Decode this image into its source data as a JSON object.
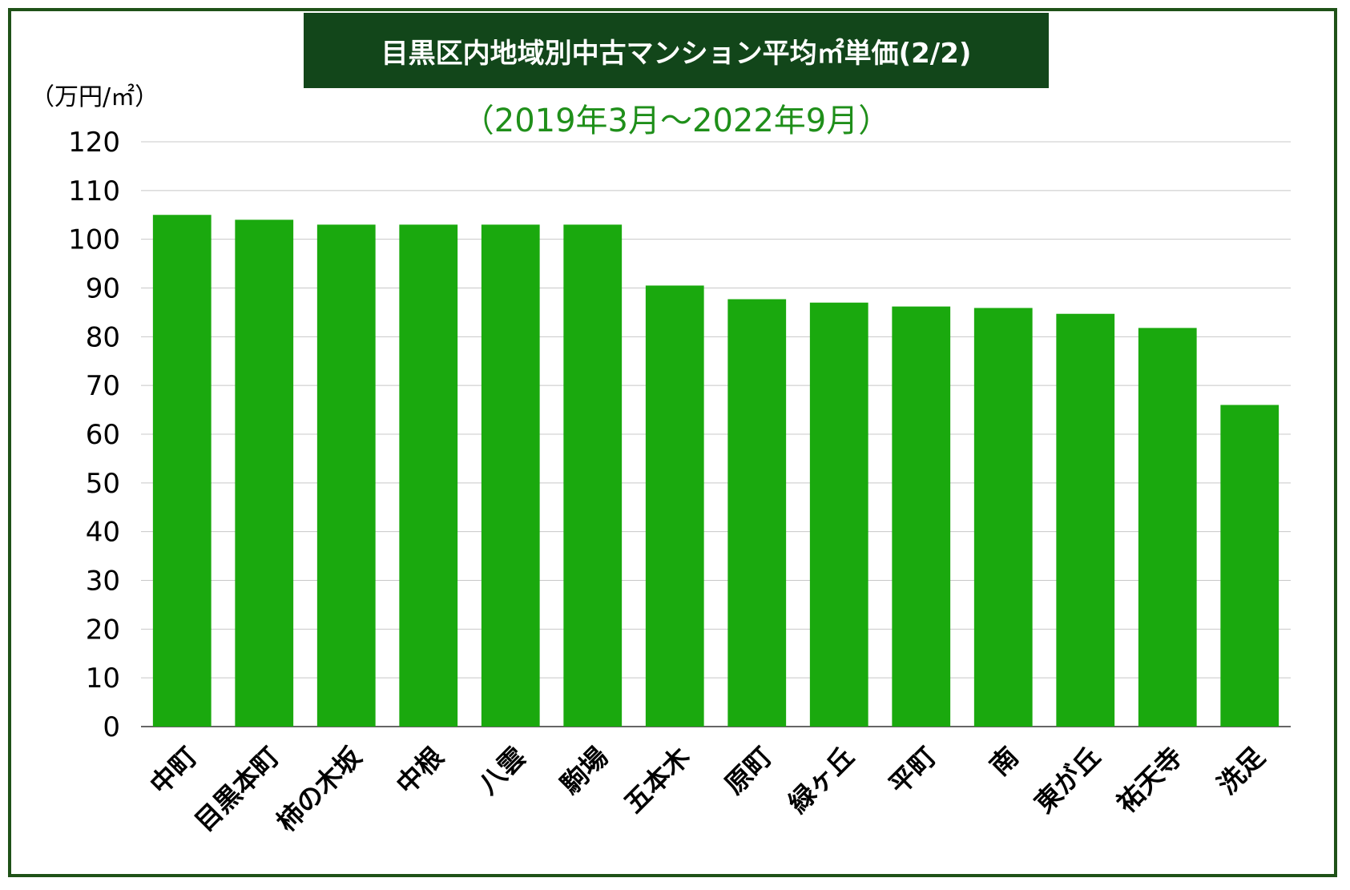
{
  "chart_data": {
    "type": "bar",
    "title": "目黒区内地域別中古マンション平均㎡単価(2/2)",
    "subtitle": "（2019年3月〜2022年9月）",
    "ylabel": "（万円/㎡）",
    "xlabel": "",
    "ylim": [
      0,
      120
    ],
    "yticks": [
      0,
      10,
      20,
      30,
      40,
      50,
      60,
      70,
      80,
      90,
      100,
      110,
      120
    ],
    "grid": true,
    "categories": [
      "中町",
      "目黒本町",
      "柿の木坂",
      "中根",
      "八雲",
      "駒場",
      "五本木",
      "原町",
      "緑ヶ丘",
      "平町",
      "南",
      "東が丘",
      "祐天寺",
      "洗足"
    ],
    "values": [
      105,
      104,
      103,
      103,
      103,
      103,
      90.5,
      87.7,
      87,
      86.2,
      85.9,
      84.7,
      81.8,
      66
    ],
    "bar_color": "#1aa90e",
    "frame_color": "#1f5218",
    "title_bg_color": "#12461a",
    "subtitle_color": "#1f8f1a"
  }
}
